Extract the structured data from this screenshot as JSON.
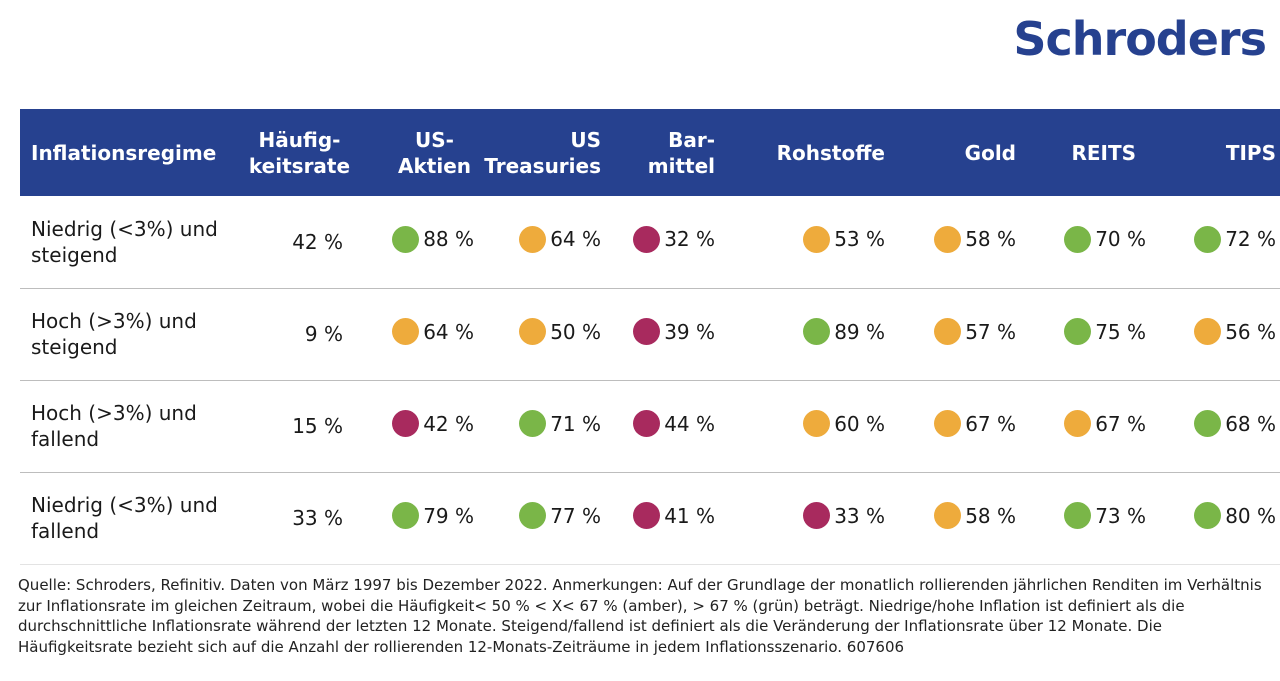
{
  "brand": "Schroders",
  "colors": {
    "header_bg": "#26418f",
    "logo": "#26418f",
    "green": "#7ab648",
    "amber": "#eeab3c",
    "red": "#a82a5e"
  },
  "chart_data": {
    "type": "table",
    "columns": [
      "Inflationsregime",
      "Häufig-\nkeitsrate",
      "US-\nAktien",
      "US\nTreasuries",
      "Bar-\nmittel",
      "Rohstoffe",
      "Gold",
      "REITS",
      "TIPS"
    ],
    "rows": [
      {
        "regime": "Niedrig (<3%) und steigend",
        "frequency": "42 %",
        "cells": [
          {
            "value": "88 %",
            "status": "green"
          },
          {
            "value": "64 %",
            "status": "amber"
          },
          {
            "value": "32 %",
            "status": "red"
          },
          {
            "value": "53 %",
            "status": "amber"
          },
          {
            "value": "58 %",
            "status": "amber"
          },
          {
            "value": "70 %",
            "status": "green"
          },
          {
            "value": "72 %",
            "status": "green"
          }
        ]
      },
      {
        "regime": "Hoch (>3%) und steigend",
        "frequency": "9 %",
        "cells": [
          {
            "value": "64 %",
            "status": "amber"
          },
          {
            "value": "50 %",
            "status": "amber"
          },
          {
            "value": "39 %",
            "status": "red"
          },
          {
            "value": "89 %",
            "status": "green"
          },
          {
            "value": "57 %",
            "status": "amber"
          },
          {
            "value": "75 %",
            "status": "green"
          },
          {
            "value": "56 %",
            "status": "amber"
          }
        ]
      },
      {
        "regime": "Hoch (>3%) und fallend",
        "frequency": "15 %",
        "cells": [
          {
            "value": "42 %",
            "status": "red"
          },
          {
            "value": "71 %",
            "status": "green"
          },
          {
            "value": "44 %",
            "status": "red"
          },
          {
            "value": "60 %",
            "status": "amber"
          },
          {
            "value": "67 %",
            "status": "amber"
          },
          {
            "value": "67 %",
            "status": "amber"
          },
          {
            "value": "68 %",
            "status": "green"
          }
        ]
      },
      {
        "regime": "Niedrig (<3%) und fallend",
        "frequency": "33 %",
        "cells": [
          {
            "value": "79 %",
            "status": "green"
          },
          {
            "value": "77 %",
            "status": "green"
          },
          {
            "value": "41 %",
            "status": "red"
          },
          {
            "value": "33 %",
            "status": "red"
          },
          {
            "value": "58 %",
            "status": "amber"
          },
          {
            "value": "73 %",
            "status": "green"
          },
          {
            "value": "80 %",
            "status": "green"
          }
        ]
      }
    ]
  },
  "footnote": "Quelle: Schroders, Refinitiv. Daten von März 1997 bis Dezember 2022. Anmerkungen: Auf der Grundlage der monatlich rollierenden jährlichen Renditen im Verhältnis zur Inflationsrate im gleichen Zeitraum, wobei die Häufigkeit< 50 % < X< 67 % (amber), > 67 % (grün) beträgt. Niedrige/hohe Inflation ist definiert als die durchschnittliche Inflationsrate während der letzten 12 Monate. Steigend/fallend ist definiert als die Veränderung der Inflationsrate über 12 Monate. Die Häufigkeitsrate bezieht sich auf die Anzahl der rollierenden 12-Monats-Zeiträume in jedem Inflationsszenario. 607606"
}
